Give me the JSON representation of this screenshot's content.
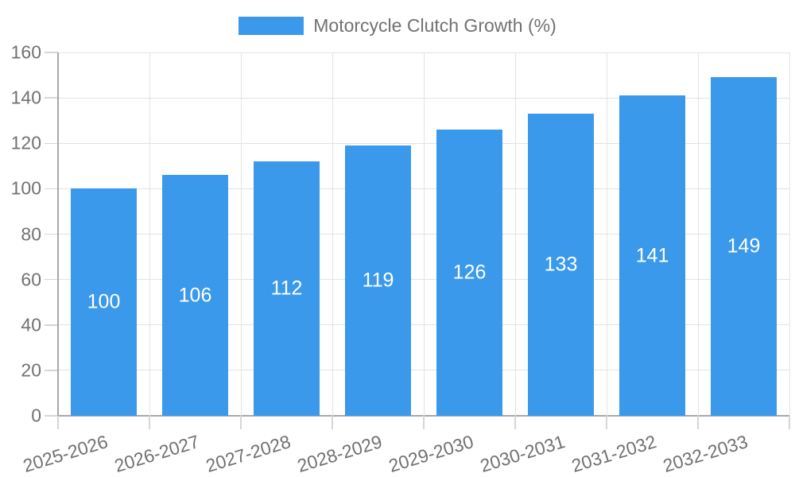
{
  "chart_data": {
    "type": "bar",
    "title": "",
    "legend": {
      "label": "Motorcycle Clutch Growth (%)",
      "position": "top"
    },
    "categories": [
      "2025-2026",
      "2026-2027",
      "2027-2028",
      "2028-2029",
      "2029-2030",
      "2030-2031",
      "2031-2032",
      "2032-2033"
    ],
    "series": [
      {
        "name": "Motorcycle Clutch Growth (%)",
        "values": [
          100,
          106,
          112,
          119,
          126,
          133,
          141,
          149
        ]
      }
    ],
    "bar_labels": [
      100,
      106,
      112,
      119,
      126,
      133,
      141,
      149
    ],
    "xlabel": "",
    "ylabel": "",
    "ylim": [
      0,
      160
    ],
    "ytick_step": 20,
    "ytick_labels": [
      "0",
      "20",
      "40",
      "60",
      "80",
      "100",
      "120",
      "140",
      "160"
    ],
    "grid": true,
    "legend_position": "top-center",
    "colors": {
      "bar": "#3b99ec",
      "bar_label_text": "#ffffff",
      "axis_text": "#717171",
      "grid_line": "#e3e3e3",
      "axis_line": "#a8a8a8",
      "tick_mark": "#d6d6d6",
      "background": "#ffffff"
    }
  }
}
